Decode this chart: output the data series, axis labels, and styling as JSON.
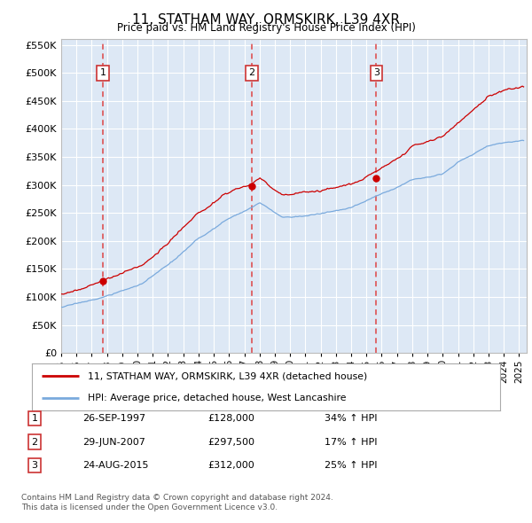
{
  "title": "11, STATHAM WAY, ORMSKIRK, L39 4XR",
  "subtitle": "Price paid vs. HM Land Registry's House Price Index (HPI)",
  "legend_line1": "11, STATHAM WAY, ORMSKIRK, L39 4XR (detached house)",
  "legend_line2": "HPI: Average price, detached house, West Lancashire",
  "footer1": "Contains HM Land Registry data © Crown copyright and database right 2024.",
  "footer2": "This data is licensed under the Open Government Licence v3.0.",
  "transactions": [
    {
      "num": 1,
      "date": "26-SEP-1997",
      "year": 1997.73,
      "price": 128000,
      "hpi_pct": "34% ↑ HPI"
    },
    {
      "num": 2,
      "date": "29-JUN-2007",
      "year": 2007.49,
      "price": 297500,
      "hpi_pct": "17% ↑ HPI"
    },
    {
      "num": 3,
      "date": "24-AUG-2015",
      "year": 2015.65,
      "price": 312000,
      "hpi_pct": "25% ↑ HPI"
    }
  ],
  "red_color": "#cc0000",
  "blue_color": "#7aaadd",
  "dashed_color": "#dd4444",
  "background_color": "#dde8f5",
  "ylim": [
    0,
    560000
  ],
  "yticks": [
    0,
    50000,
    100000,
    150000,
    200000,
    250000,
    300000,
    350000,
    400000,
    450000,
    500000,
    550000
  ],
  "xlim_start": 1995.0,
  "xlim_end": 2025.5
}
